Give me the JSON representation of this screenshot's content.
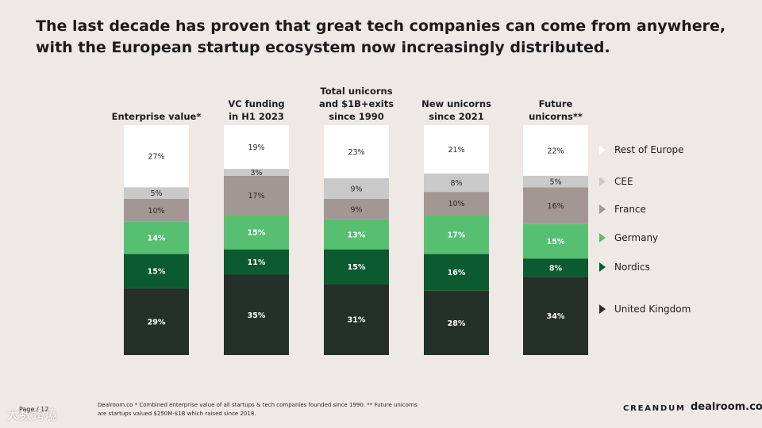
{
  "title": "The last decade has proven that great tech companies can come from anywhere, with the European startup ecosystem now increasingly distributed.",
  "chart_data": {
    "type": "bar",
    "stacked": true,
    "normalized": true,
    "unit": "%",
    "categories": [
      [
        "Enterprise value*"
      ],
      [
        "VC funding",
        "in H1 2023"
      ],
      [
        "Total unicorns",
        "and $1B+exits",
        "since 1990"
      ],
      [
        "New unicorns",
        "since 2021"
      ],
      [
        "Future",
        "unicorns**"
      ]
    ],
    "series": [
      {
        "name": "United Kingdom",
        "color": "#243028",
        "label_color": "#ffffff",
        "values": [
          29,
          35,
          31,
          28,
          34
        ]
      },
      {
        "name": "Nordics",
        "color": "#0c5a30",
        "label_color": "#ffffff",
        "values": [
          15,
          11,
          15,
          16,
          8
        ]
      },
      {
        "name": "Germany",
        "color": "#56bf72",
        "label_color": "#ffffff",
        "values": [
          14,
          15,
          13,
          17,
          15
        ]
      },
      {
        "name": "France",
        "color": "#a39793",
        "label_color": "#2a2a2a",
        "values": [
          10,
          17,
          9,
          10,
          16
        ]
      },
      {
        "name": "CEE",
        "color": "#c9c9c9",
        "label_color": "#2a2a2a",
        "values": [
          5,
          3,
          9,
          8,
          5
        ]
      },
      {
        "name": "Rest of Europe",
        "color": "#ffffff",
        "label_color": "#2a2a2a",
        "values": [
          27,
          19,
          23,
          21,
          22
        ]
      }
    ],
    "legend_order": [
      "Rest of Europe",
      "CEE",
      "France",
      "Germany",
      "Nordics",
      "United Kingdom"
    ]
  },
  "footer": {
    "source": "Dealroom.co * Combined enterprise value of all startups & tech companies founded since 1990. ** Future unicorns are startups valued $250M-$1B which raised since 2018.",
    "page": "Page / 12"
  },
  "watermark": "大数跨境",
  "logos": {
    "creandum": "CREANDUM",
    "dealroom": "dealroom.co"
  }
}
